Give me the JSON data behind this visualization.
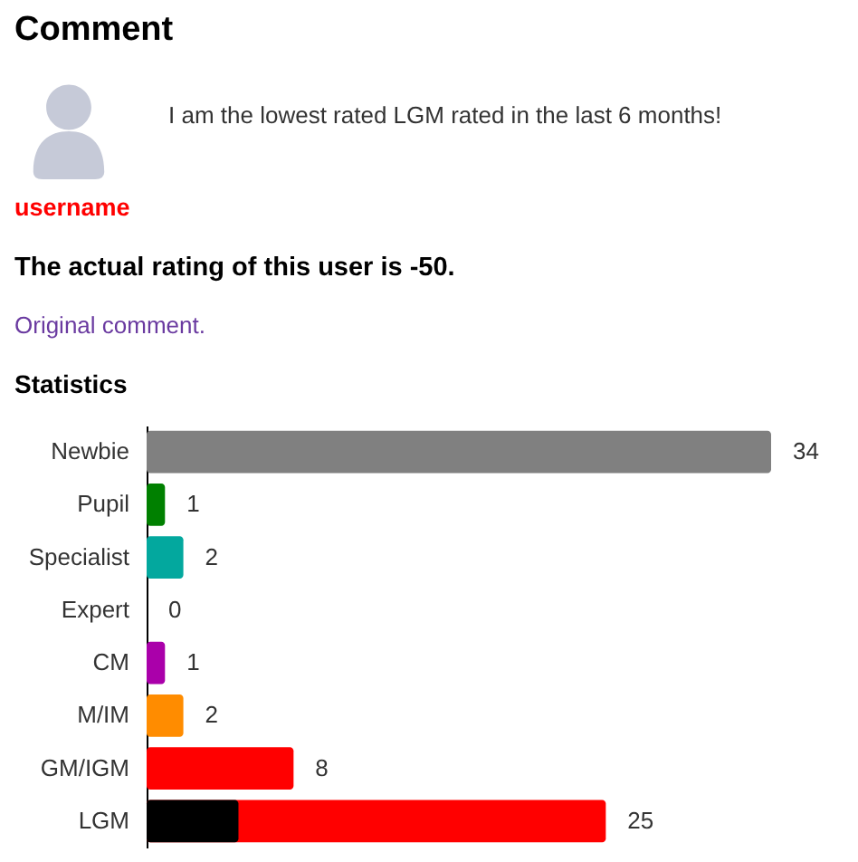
{
  "chart_data": {
    "type": "bar",
    "orientation": "horizontal",
    "title": "Comment",
    "annotations": [
      "I am the lowest rated LGM rated in the last 6 months!",
      "username",
      "The actual rating of this user is -50.",
      "Original comment.",
      "Statistics"
    ],
    "categories": [
      "Newbie",
      "Pupil",
      "Specialist",
      "Expert",
      "CM",
      "M/IM",
      "GM/IGM",
      "LGM"
    ],
    "series": [
      {
        "colors": [
          "#808080",
          "#008000",
          "#03a89e",
          null,
          "#aa00aa",
          "#ff8c00",
          "#ff0000",
          "#ff0000"
        ],
        "values": [
          34,
          1,
          2,
          0,
          1,
          2,
          8,
          25
        ],
        "value_labels": [
          "34",
          "1",
          "2",
          "0",
          "1",
          "2",
          "8",
          "25"
        ]
      },
      {
        "color": "#000000",
        "values": [
          null,
          null,
          null,
          null,
          null,
          null,
          null,
          5
        ]
      }
    ],
    "tick_labels": "y"
  }
}
